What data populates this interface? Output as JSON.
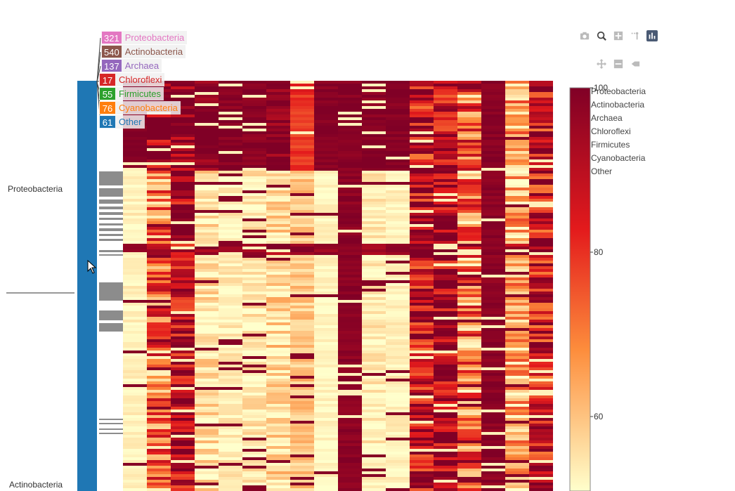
{
  "chart_data": {
    "type": "heatmap",
    "title": "",
    "xlabel": "",
    "ylabel": "",
    "row_groups": [
      {
        "name": "Proteobacteria",
        "count": 321,
        "color": "#e377c2"
      },
      {
        "name": "Actinobacteria",
        "count": 540,
        "color": "#8c564b"
      },
      {
        "name": "Archaea",
        "count": 137,
        "color": "#9467bd"
      },
      {
        "name": "Chloroflexi",
        "count": 17,
        "color": "#d62728"
      },
      {
        "name": "Firmicutes",
        "count": 55,
        "color": "#2ca02c"
      },
      {
        "name": "Cyanobacteria",
        "count": 76,
        "color": "#ff7f0e"
      },
      {
        "name": "Other",
        "count": 61,
        "color": "#1f77b4"
      }
    ],
    "y_tick_labels": [
      "Proteobacteria",
      "Actinobacteria"
    ],
    "colorbar": {
      "ticks": [
        100,
        80,
        60
      ],
      "range": [
        50,
        100
      ],
      "colors": [
        "#ffffcc",
        "#fd8d3c",
        "#e31a1c",
        "#800026"
      ]
    },
    "column_count": 18,
    "legend_entries": [
      "Proteobacteria",
      "Actinobacteria",
      "Archaea",
      "Chloroflexi",
      "Firmicutes",
      "Cyanobacteria",
      "Other"
    ]
  },
  "hover_labels": [
    {
      "count": "321",
      "name": "Proteobacteria",
      "color": "#e377c2"
    },
    {
      "count": "540",
      "name": "Actinobacteria",
      "color": "#8c564b"
    },
    {
      "count": "137",
      "name": "Archaea",
      "color": "#9467bd"
    },
    {
      "count": "17",
      "name": "Chloroflexi",
      "color": "#d62728"
    },
    {
      "count": "55",
      "name": "Firmicutes",
      "color": "#2ca02c"
    },
    {
      "count": "76",
      "name": "Cyanobacteria",
      "color": "#ff7f0e"
    },
    {
      "count": "61",
      "name": "Other",
      "color": "#1f77b4"
    }
  ],
  "modebar": {
    "icons": [
      "camera-icon",
      "zoom-icon",
      "zoom-in-icon",
      "select-icon",
      "bar-chart-icon",
      "pan-icon",
      "zoom-out-icon",
      "autoscale-icon"
    ]
  }
}
